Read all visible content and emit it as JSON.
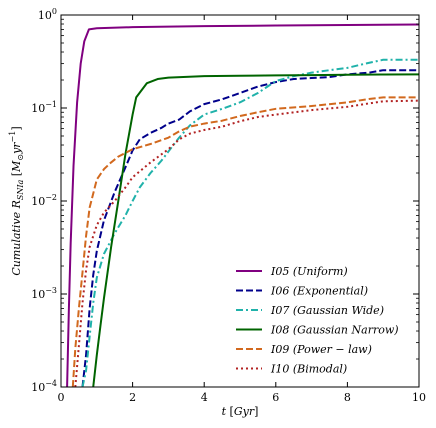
{
  "chart_data": {
    "type": "line",
    "title": "",
    "xlabel": "t [Gyr]",
    "ylabel": "Cumulative R_SNIa [M_⊙ yr^-1]",
    "xlim": [
      0,
      10
    ],
    "ylim": [
      0.0001,
      1
    ],
    "y_scale": "log",
    "x_ticks": [
      0,
      2,
      4,
      6,
      8,
      10
    ],
    "x_tick_labels": [
      "0",
      "2",
      "4",
      "6",
      "8",
      "10"
    ],
    "y_ticks": [
      0.0001,
      0.001,
      0.01,
      0.1,
      1
    ],
    "y_tick_labels": [
      {
        "base": "10",
        "exp": "−4"
      },
      {
        "base": "10",
        "exp": "−3"
      },
      {
        "base": "10",
        "exp": "−2"
      },
      {
        "base": "10",
        "exp": "−1"
      },
      {
        "base": "10",
        "exp": "0"
      }
    ],
    "grid": false,
    "legend_position": "lower-right",
    "series": [
      {
        "name": "I05 (Uniform)",
        "color": "#800080",
        "dash": "solid",
        "points": [
          [
            0.17,
            0.0001
          ],
          [
            0.22,
            0.00069
          ],
          [
            0.27,
            0.0035
          ],
          [
            0.35,
            0.024
          ],
          [
            0.45,
            0.115
          ],
          [
            0.55,
            0.3
          ],
          [
            0.65,
            0.52
          ],
          [
            0.78,
            0.7
          ],
          [
            1.0,
            0.72
          ],
          [
            2.0,
            0.74
          ],
          [
            4.0,
            0.76
          ],
          [
            6.0,
            0.77
          ],
          [
            8.0,
            0.78
          ],
          [
            10.0,
            0.79
          ]
        ]
      },
      {
        "name": "I06 (Exponential)",
        "color": "#00008b",
        "dash": "dashed",
        "points": [
          [
            0.6,
            0.0001
          ],
          [
            0.7,
            0.00022
          ],
          [
            0.8,
            0.0007
          ],
          [
            0.9,
            0.0016
          ],
          [
            1.0,
            0.0029
          ],
          [
            1.2,
            0.0062
          ],
          [
            1.5,
            0.0125
          ],
          [
            1.8,
            0.023
          ],
          [
            2.0,
            0.035
          ],
          [
            2.2,
            0.046
          ],
          [
            2.5,
            0.054
          ],
          [
            2.8,
            0.061
          ],
          [
            3.0,
            0.068
          ],
          [
            3.3,
            0.075
          ],
          [
            3.6,
            0.092
          ],
          [
            4.0,
            0.11
          ],
          [
            4.5,
            0.124
          ],
          [
            5.0,
            0.145
          ],
          [
            5.5,
            0.17
          ],
          [
            6.0,
            0.19
          ],
          [
            6.5,
            0.205
          ],
          [
            7.0,
            0.21
          ],
          [
            7.5,
            0.215
          ],
          [
            8.0,
            0.23
          ],
          [
            8.6,
            0.24
          ],
          [
            9.0,
            0.255
          ],
          [
            10.0,
            0.255
          ]
        ]
      },
      {
        "name": "I07 (Gaussian Wide)",
        "color": "#20b2aa",
        "dash": "dashdot",
        "points": [
          [
            0.6,
            0.0001
          ],
          [
            0.7,
            0.00015
          ],
          [
            0.8,
            0.00035
          ],
          [
            0.9,
            0.0008
          ],
          [
            1.0,
            0.0015
          ],
          [
            1.2,
            0.0027
          ],
          [
            1.5,
            0.0045
          ],
          [
            1.8,
            0.007
          ],
          [
            2.0,
            0.01
          ],
          [
            2.2,
            0.014
          ],
          [
            2.5,
            0.02
          ],
          [
            2.8,
            0.027
          ],
          [
            3.0,
            0.034
          ],
          [
            3.3,
            0.048
          ],
          [
            3.6,
            0.065
          ],
          [
            4.0,
            0.085
          ],
          [
            4.5,
            0.098
          ],
          [
            5.0,
            0.115
          ],
          [
            5.5,
            0.145
          ],
          [
            6.0,
            0.195
          ],
          [
            6.5,
            0.22
          ],
          [
            7.0,
            0.24
          ],
          [
            7.5,
            0.255
          ],
          [
            8.0,
            0.27
          ],
          [
            8.5,
            0.3
          ],
          [
            9.0,
            0.33
          ],
          [
            10.0,
            0.33
          ]
        ]
      },
      {
        "name": "I08 (Gaussian Narrow)",
        "color": "#006400",
        "dash": "solid",
        "points": [
          [
            0.9,
            0.0001
          ],
          [
            1.0,
            0.00022
          ],
          [
            1.1,
            0.00045
          ],
          [
            1.2,
            0.0009
          ],
          [
            1.4,
            0.0032
          ],
          [
            1.6,
            0.01
          ],
          [
            1.8,
            0.032
          ],
          [
            2.0,
            0.085
          ],
          [
            2.1,
            0.13
          ],
          [
            2.4,
            0.185
          ],
          [
            2.7,
            0.205
          ],
          [
            3.0,
            0.212
          ],
          [
            4.0,
            0.22
          ],
          [
            5.0,
            0.222
          ],
          [
            6.0,
            0.224
          ],
          [
            7.0,
            0.226
          ],
          [
            8.0,
            0.228
          ],
          [
            9.0,
            0.229
          ],
          [
            10.0,
            0.23
          ]
        ]
      },
      {
        "name": "I09 (Power − law)",
        "color": "#d2691e",
        "dash": "dashed",
        "points": [
          [
            0.33,
            0.0001
          ],
          [
            0.4,
            0.00026
          ],
          [
            0.5,
            0.0007
          ],
          [
            0.6,
            0.0017
          ],
          [
            0.7,
            0.0042
          ],
          [
            0.8,
            0.0085
          ],
          [
            1.0,
            0.017
          ],
          [
            1.2,
            0.022
          ],
          [
            1.4,
            0.026
          ],
          [
            1.6,
            0.03
          ],
          [
            2.0,
            0.036
          ],
          [
            2.5,
            0.041
          ],
          [
            3.0,
            0.048
          ],
          [
            3.3,
            0.056
          ],
          [
            3.6,
            0.063
          ],
          [
            4.0,
            0.068
          ],
          [
            4.5,
            0.073
          ],
          [
            5.0,
            0.082
          ],
          [
            5.5,
            0.09
          ],
          [
            6.0,
            0.098
          ],
          [
            7.0,
            0.105
          ],
          [
            8.0,
            0.115
          ],
          [
            8.6,
            0.125
          ],
          [
            9.0,
            0.13
          ],
          [
            10.0,
            0.13
          ]
        ]
      },
      {
        "name": "I10 (Bimodal)",
        "color": "#b22222",
        "dash": "dotted",
        "points": [
          [
            0.4,
            0.0001
          ],
          [
            0.5,
            0.00028
          ],
          [
            0.6,
            0.0008
          ],
          [
            0.7,
            0.0018
          ],
          [
            0.8,
            0.0032
          ],
          [
            1.0,
            0.0055
          ],
          [
            1.2,
            0.0075
          ],
          [
            1.5,
            0.01
          ],
          [
            1.8,
            0.014
          ],
          [
            2.0,
            0.018
          ],
          [
            2.5,
            0.026
          ],
          [
            3.0,
            0.036
          ],
          [
            3.3,
            0.046
          ],
          [
            3.6,
            0.053
          ],
          [
            4.0,
            0.058
          ],
          [
            4.5,
            0.063
          ],
          [
            5.0,
            0.072
          ],
          [
            5.5,
            0.08
          ],
          [
            6.0,
            0.085
          ],
          [
            7.0,
            0.095
          ],
          [
            8.0,
            0.103
          ],
          [
            8.6,
            0.112
          ],
          [
            9.0,
            0.118
          ],
          [
            10.0,
            0.12
          ]
        ]
      }
    ]
  }
}
